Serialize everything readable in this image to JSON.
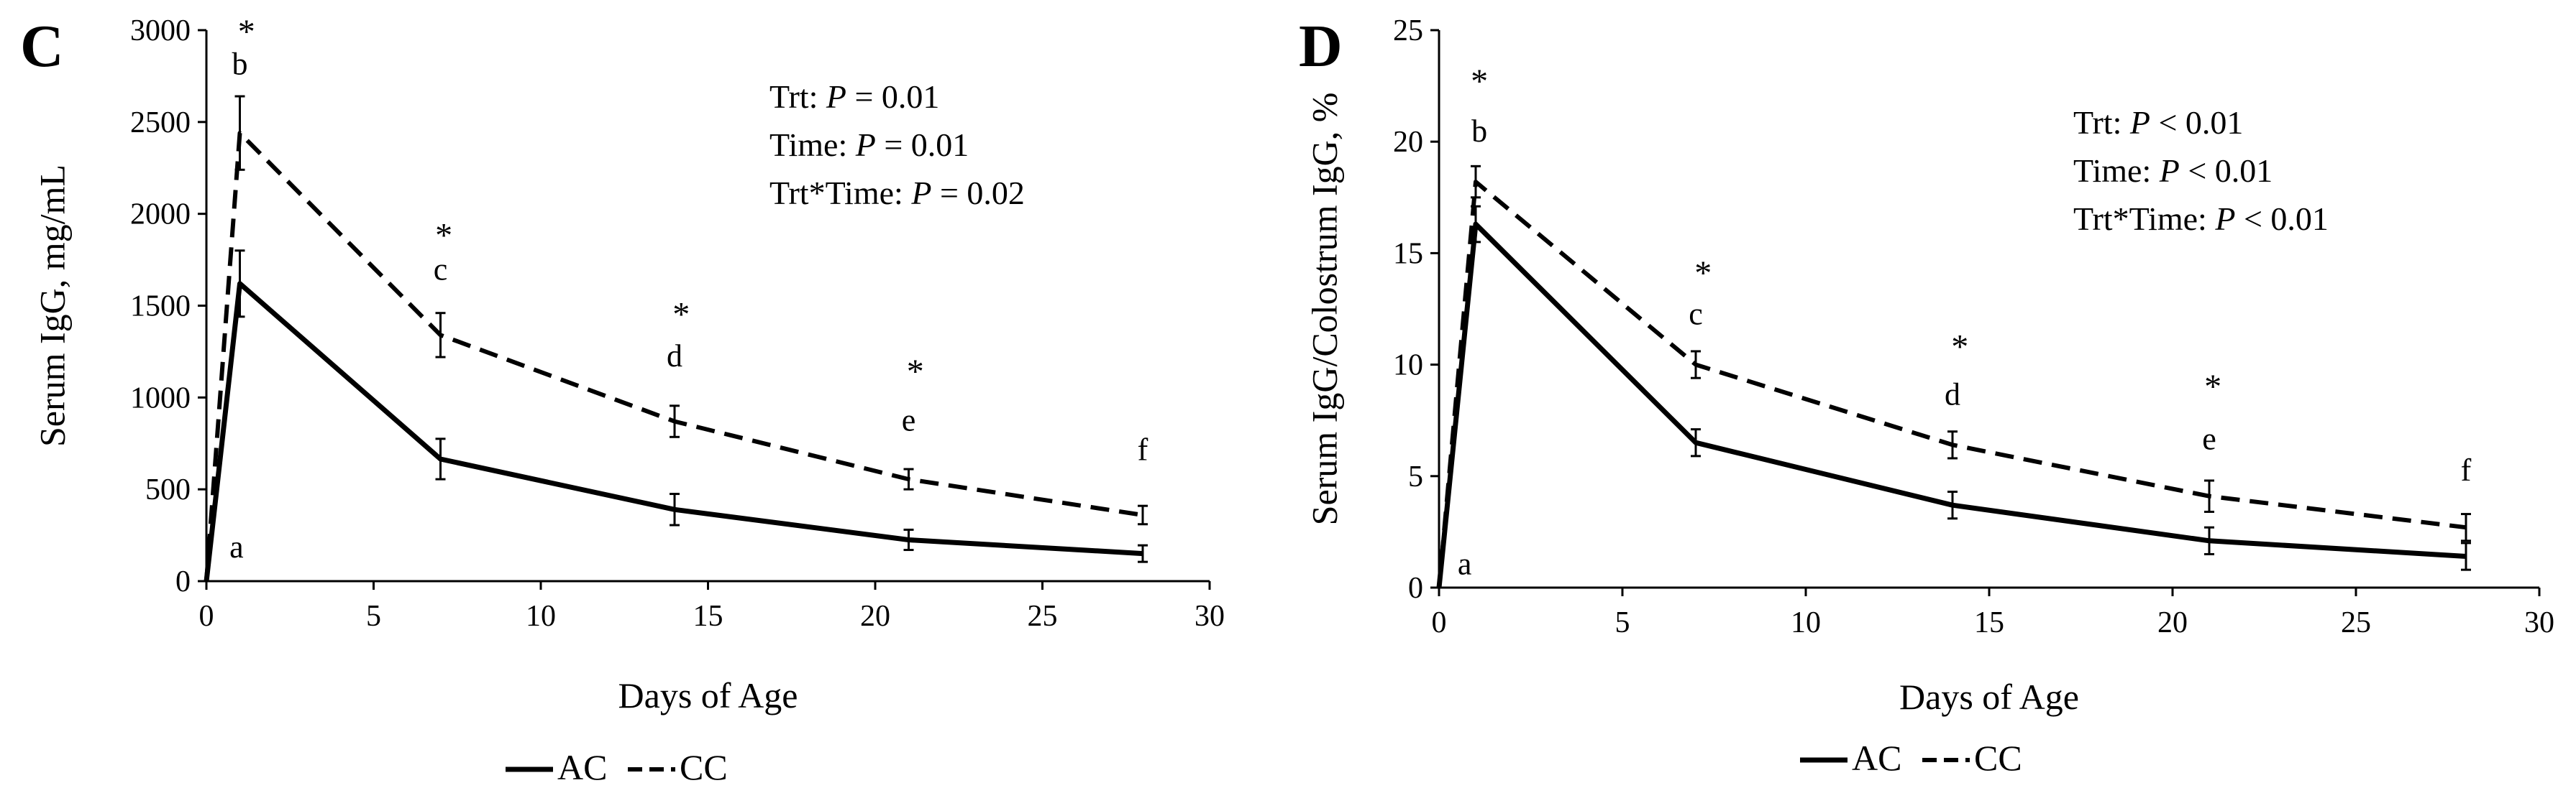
{
  "chart_data": [
    {
      "type": "line",
      "panel_label": "C",
      "xlabel": "Days of Age",
      "ylabel": "Serum IgG, mg/mL",
      "xlim": [
        0,
        30
      ],
      "ylim": [
        0,
        3000
      ],
      "xticks": [
        0,
        5,
        10,
        15,
        20,
        25,
        30
      ],
      "yticks": [
        0,
        500,
        1000,
        1500,
        2000,
        2500,
        3000
      ],
      "grid": false,
      "legend_position": "bottom-center",
      "stats": [
        {
          "prefix": "Trt: ",
          "p": "P",
          "suffix": " = 0.01"
        },
        {
          "prefix": "Time: ",
          "p": "P",
          "suffix": " = 0.01"
        },
        {
          "prefix": "Trt*Time: ",
          "p": "P",
          "suffix": " = 0.02"
        }
      ],
      "series": [
        {
          "name": "AC",
          "style": "solid",
          "x": [
            0,
            1,
            7,
            14,
            21,
            28
          ],
          "values": [
            0,
            1620,
            665,
            390,
            225,
            150
          ],
          "errors": [
            0,
            180,
            110,
            85,
            55,
            45
          ]
        },
        {
          "name": "CC",
          "style": "dashed",
          "x": [
            0,
            1,
            7,
            14,
            21,
            28
          ],
          "values": [
            0,
            2440,
            1340,
            870,
            555,
            360
          ],
          "errors": [
            0,
            200,
            120,
            85,
            55,
            50
          ]
        }
      ],
      "annotations": [
        {
          "text": "a",
          "x": 0.9,
          "y": 130
        },
        {
          "text": "b",
          "x": 1.0,
          "y": 2760
        },
        {
          "text": "*",
          "x": 1.2,
          "y": 2930
        },
        {
          "text": "*",
          "x": 7.1,
          "y": 1820
        },
        {
          "text": "c",
          "x": 7.0,
          "y": 1640
        },
        {
          "text": "*",
          "x": 14.2,
          "y": 1390
        },
        {
          "text": "d",
          "x": 14.0,
          "y": 1170
        },
        {
          "text": "*",
          "x": 21.2,
          "y": 1080
        },
        {
          "text": "e",
          "x": 21.0,
          "y": 820
        },
        {
          "text": "f",
          "x": 28.0,
          "y": 660
        }
      ]
    },
    {
      "type": "line",
      "panel_label": "D",
      "xlabel": "Days of Age",
      "ylabel": "Serum IgG/Colostrum IgG, %",
      "xlim": [
        0,
        30
      ],
      "ylim": [
        0,
        25
      ],
      "xticks": [
        0,
        5,
        10,
        15,
        20,
        25,
        30
      ],
      "yticks": [
        0,
        5,
        10,
        15,
        20,
        25
      ],
      "grid": false,
      "legend_position": "bottom-center",
      "stats": [
        {
          "prefix": "Trt: ",
          "p": "P",
          "suffix": " < 0.01"
        },
        {
          "prefix": "Time: ",
          "p": "P",
          "suffix": " < 0.01"
        },
        {
          "prefix": "Trt*Time: ",
          "p": "P",
          "suffix": " < 0.01"
        }
      ],
      "series": [
        {
          "name": "AC",
          "style": "solid",
          "x": [
            0,
            1,
            7,
            14,
            21,
            28
          ],
          "values": [
            0,
            16.3,
            6.5,
            3.7,
            2.1,
            1.4
          ],
          "errors": [
            0,
            0.8,
            0.6,
            0.6,
            0.6,
            0.6
          ]
        },
        {
          "name": "CC",
          "style": "dashed",
          "x": [
            0,
            1,
            7,
            14,
            21,
            28
          ],
          "values": [
            0,
            18.2,
            10.0,
            6.4,
            4.1,
            2.7
          ],
          "errors": [
            0,
            0.7,
            0.6,
            0.6,
            0.7,
            0.6
          ]
        }
      ],
      "annotations": [
        {
          "text": "a",
          "x": 0.7,
          "y": 0.6
        },
        {
          "text": "*",
          "x": 1.1,
          "y": 22.2
        },
        {
          "text": "b",
          "x": 1.1,
          "y": 20.0
        },
        {
          "text": "*",
          "x": 7.2,
          "y": 13.6
        },
        {
          "text": "c",
          "x": 7.0,
          "y": 11.8
        },
        {
          "text": "*",
          "x": 14.2,
          "y": 10.3
        },
        {
          "text": "d",
          "x": 14.0,
          "y": 8.2
        },
        {
          "text": "*",
          "x": 21.1,
          "y": 8.5
        },
        {
          "text": "e",
          "x": 21.0,
          "y": 6.2
        },
        {
          "text": "f",
          "x": 28.0,
          "y": 4.8
        }
      ]
    }
  ]
}
